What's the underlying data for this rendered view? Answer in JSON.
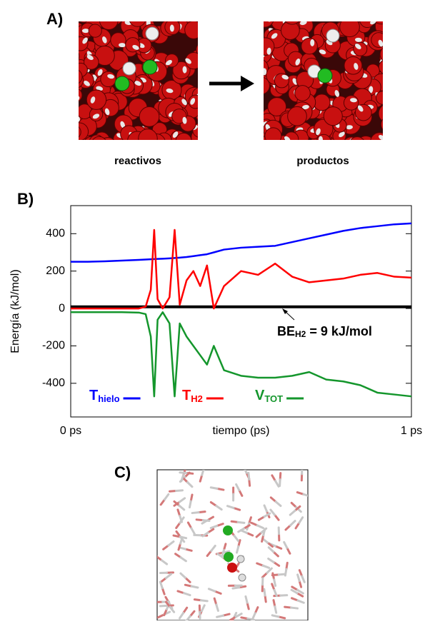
{
  "panels": {
    "a": {
      "label": "A)",
      "left_caption": "reactivos",
      "right_caption": "productos"
    },
    "b": {
      "label": "B)"
    },
    "c": {
      "label": "C)"
    }
  },
  "chart_data": {
    "type": "line",
    "xlabel": "tiempo (ps)",
    "ylabel": "Energía (kJ/mol)",
    "xlim": [
      0,
      1
    ],
    "xticks": [
      {
        "value": 0,
        "label": "0 ps"
      },
      {
        "value": 1,
        "label": "1 ps"
      }
    ],
    "ylim": [
      -580,
      550
    ],
    "yticks": [
      -400,
      -200,
      0,
      200,
      400
    ],
    "x": [
      0,
      0.05,
      0.1,
      0.15,
      0.2,
      0.22,
      0.235,
      0.245,
      0.255,
      0.27,
      0.29,
      0.305,
      0.32,
      0.34,
      0.36,
      0.38,
      0.4,
      0.42,
      0.45,
      0.5,
      0.55,
      0.6,
      0.65,
      0.7,
      0.75,
      0.8,
      0.85,
      0.9,
      0.95,
      1
    ],
    "series": [
      {
        "name": "T",
        "name_sub": "hielo",
        "color": "#0000ff",
        "values": [
          250,
          250,
          252,
          256,
          260,
          262,
          263,
          264,
          265,
          266,
          268,
          270,
          272,
          275,
          280,
          285,
          290,
          300,
          315,
          325,
          330,
          335,
          355,
          375,
          395,
          415,
          430,
          440,
          450,
          455
        ]
      },
      {
        "name": "T",
        "name_sub": "H2",
        "color": "#ff0000",
        "values": [
          0,
          0,
          0,
          0,
          0,
          10,
          100,
          420,
          50,
          0,
          60,
          420,
          20,
          150,
          200,
          120,
          230,
          0,
          120,
          200,
          180,
          240,
          170,
          140,
          150,
          160,
          180,
          190,
          170,
          165
        ]
      },
      {
        "name": "V",
        "name_sub": "TOT",
        "color": "#14962c",
        "values": [
          -20,
          -20,
          -20,
          -20,
          -22,
          -30,
          -150,
          -470,
          -60,
          -20,
          -80,
          -470,
          -80,
          -150,
          -200,
          -250,
          -300,
          -200,
          -330,
          -360,
          -370,
          -370,
          -360,
          -340,
          -380,
          -390,
          -410,
          -450,
          -460,
          -470
        ]
      }
    ],
    "reference_line": {
      "value": 9,
      "color": "#000000"
    },
    "annotation": {
      "text": "BE",
      "subscript": "H2",
      "suffix": " = 9 kJ/mol"
    }
  }
}
